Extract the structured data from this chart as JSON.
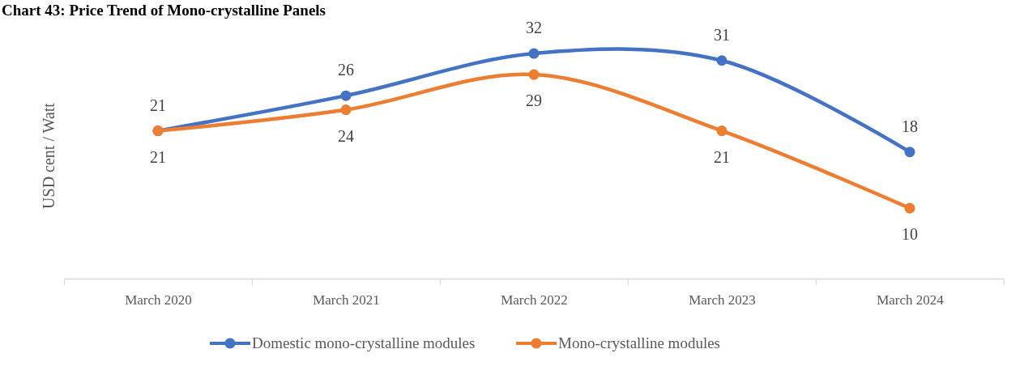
{
  "chart_data": {
    "type": "line",
    "title": "Chart 43: Price Trend of Mono-crystalline Panels",
    "ylabel": "USD cent / Watt",
    "categories": [
      "March 2020",
      "March 2021",
      "March 2022",
      "March 2023",
      "March 2024"
    ],
    "series": [
      {
        "name": "Domestic mono-crystalline modules",
        "color": "#4472c4",
        "values": [
          21,
          26,
          32,
          31,
          18
        ]
      },
      {
        "name": "Mono-crystalline modules",
        "color": "#ed7d31",
        "values": [
          21,
          24,
          29,
          21,
          10
        ]
      }
    ],
    "tick_labels": "x",
    "data_labels": true,
    "legend": "bottom",
    "marker": "circle",
    "line_style": "solid"
  }
}
